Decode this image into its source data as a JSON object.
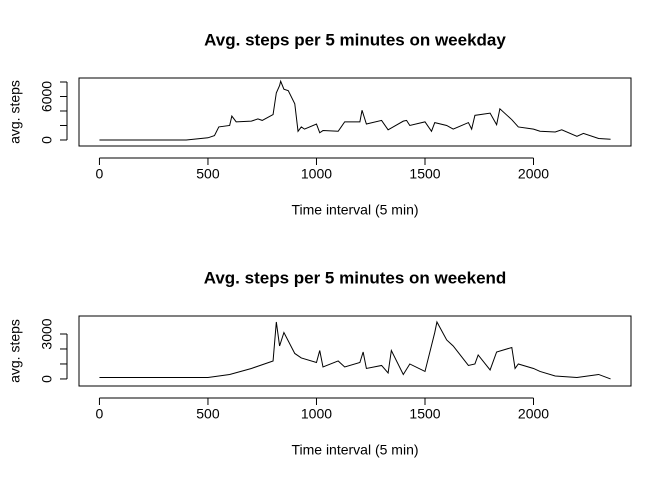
{
  "chart_data": [
    {
      "type": "line",
      "title": "Avg. steps per 5 minutes on weekday",
      "xlabel": "Time interval (5 min)",
      "ylabel": "avg. steps",
      "x": [
        0,
        100,
        200,
        300,
        400,
        500,
        530,
        550,
        600,
        610,
        630,
        700,
        730,
        750,
        800,
        815,
        830,
        835,
        850,
        870,
        900,
        915,
        930,
        945,
        1000,
        1015,
        1030,
        1100,
        1130,
        1200,
        1210,
        1230,
        1300,
        1330,
        1400,
        1415,
        1430,
        1500,
        1530,
        1545,
        1600,
        1630,
        1700,
        1715,
        1730,
        1800,
        1830,
        1845,
        1900,
        1930,
        2000,
        2030,
        2100,
        2130,
        2200,
        2230,
        2300,
        2355
      ],
      "series": [
        {
          "color": "#000000",
          "values": [
            0,
            0,
            0,
            0,
            0,
            300,
            600,
            1800,
            2000,
            3300,
            2500,
            2600,
            2900,
            2700,
            3500,
            6500,
            7500,
            8100,
            7000,
            6800,
            5000,
            1200,
            1800,
            1500,
            2200,
            1000,
            1300,
            1200,
            2500,
            2500,
            4100,
            2200,
            2700,
            1400,
            2600,
            2700,
            2000,
            2500,
            1200,
            2400,
            2000,
            1500,
            2400,
            1500,
            3400,
            3700,
            2100,
            4300,
            2800,
            1800,
            1500,
            1200,
            1100,
            1400,
            500,
            900,
            200,
            100
          ]
        }
      ],
      "xlim": [
        -94.2,
        2449.2
      ],
      "xticks": [
        0,
        500,
        1000,
        1500,
        2000
      ],
      "ylim": [
        -830,
        8550
      ],
      "yticks": [
        0,
        2000,
        4000,
        6000,
        8000
      ]
    },
    {
      "type": "line",
      "title": "Avg. steps per 5 minutes on weekend",
      "xlabel": "Time interval (5 min)",
      "ylabel": "avg. steps",
      "x": [
        0,
        100,
        200,
        300,
        400,
        500,
        600,
        700,
        800,
        815,
        830,
        850,
        900,
        930,
        1000,
        1015,
        1030,
        1100,
        1130,
        1200,
        1215,
        1230,
        1300,
        1330,
        1345,
        1400,
        1430,
        1500,
        1545,
        1555,
        1600,
        1630,
        1700,
        1730,
        1745,
        1800,
        1830,
        1900,
        1915,
        1930,
        2000,
        2030,
        2100,
        2200,
        2300,
        2355
      ],
      "series": [
        {
          "color": "#000000",
          "values": [
            100,
            100,
            100,
            100,
            100,
            100,
            300,
            700,
            1200,
            3800,
            2200,
            3100,
            1700,
            1400,
            1100,
            1900,
            800,
            1200,
            800,
            1100,
            1800,
            700,
            900,
            400,
            1900,
            300,
            1000,
            500,
            3100,
            3800,
            2600,
            2200,
            900,
            1000,
            1600,
            600,
            1800,
            2100,
            700,
            1000,
            700,
            500,
            200,
            100,
            300,
            0
          ]
        }
      ],
      "xlim": [
        -94.2,
        2449.2
      ],
      "xticks": [
        0,
        500,
        1000,
        1500,
        2000
      ],
      "ylim": [
        -470,
        4200
      ],
      "yticks": [
        0,
        1000,
        2000,
        3000
      ]
    }
  ]
}
